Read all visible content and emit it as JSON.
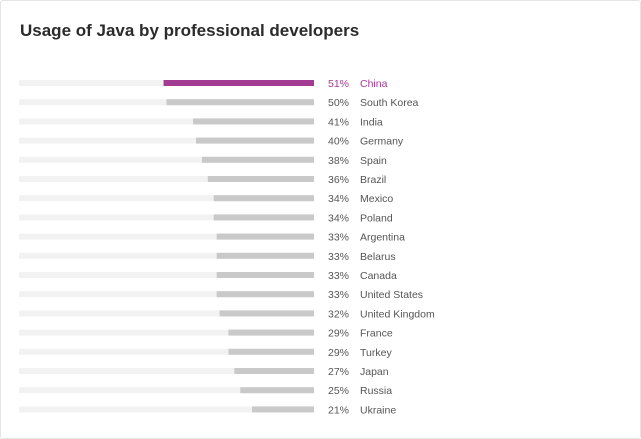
{
  "chart_data": {
    "type": "bar",
    "orientation": "horizontal",
    "title": "Usage of Java by professional developers",
    "xlim": [
      0,
      100
    ],
    "value_suffix": "%",
    "grid": false,
    "highlight_category": "China",
    "colors": {
      "highlight": "#a23b91",
      "bar": "#c9c9c9",
      "track": "#f2f2f2",
      "label": "#555555"
    },
    "categories": [
      "China",
      "South Korea",
      "India",
      "Germany",
      "Spain",
      "Brazil",
      "Mexico",
      "Poland",
      "Argentina",
      "Belarus",
      "Canada",
      "United States",
      "United Kingdom",
      "France",
      "Turkey",
      "Japan",
      "Russia",
      "Ukraine"
    ],
    "values": [
      51,
      50,
      41,
      40,
      38,
      36,
      34,
      34,
      33,
      33,
      33,
      33,
      32,
      29,
      29,
      27,
      25,
      21
    ],
    "value_labels": [
      "51%",
      "50%",
      "41%",
      "40%",
      "38%",
      "36%",
      "34%",
      "34%",
      "33%",
      "33%",
      "33%",
      "33%",
      "32%",
      "29%",
      "29%",
      "27%",
      "25%",
      "21%"
    ]
  }
}
